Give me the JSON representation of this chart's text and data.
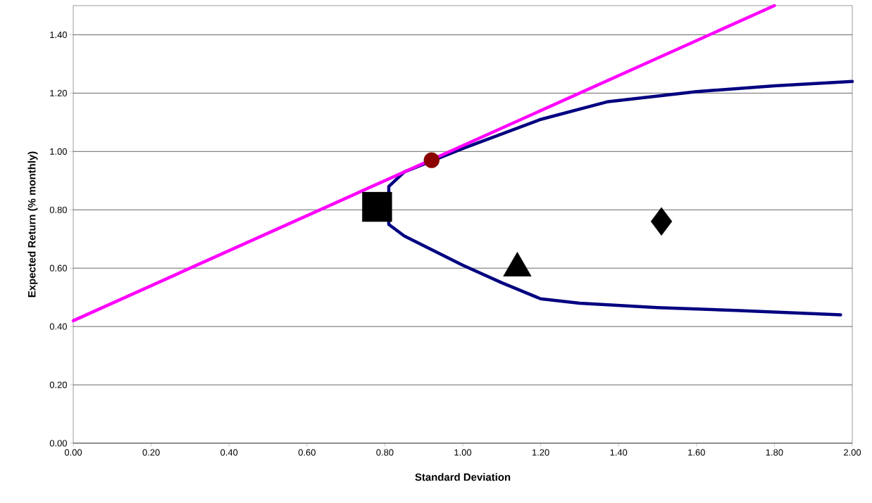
{
  "chart_data": {
    "type": "scatter",
    "xlabel": "Standard Deviation",
    "ylabel": "Expected Return (% monthly)",
    "xlim": [
      0,
      2
    ],
    "ylim": [
      0,
      1.5
    ],
    "xticks": [
      {
        "value": 0,
        "label": "0.00"
      },
      {
        "value": 0.2,
        "label": "0.20"
      },
      {
        "value": 0.4,
        "label": "0.40"
      },
      {
        "value": 0.6,
        "label": "0.60"
      },
      {
        "value": 0.8,
        "label": "0.80"
      },
      {
        "value": 1.0,
        "label": "1.00"
      },
      {
        "value": 1.2,
        "label": "1.20"
      },
      {
        "value": 1.4,
        "label": "1.40"
      },
      {
        "value": 1.6,
        "label": "1.60"
      },
      {
        "value": 1.8,
        "label": "1.80"
      },
      {
        "value": 2.0,
        "label": "2.00"
      }
    ],
    "yticks": [
      {
        "value": 0,
        "label": "0.00"
      },
      {
        "value": 0.2,
        "label": "0.20"
      },
      {
        "value": 0.4,
        "label": "0.40"
      },
      {
        "value": 0.6,
        "label": "0.60"
      },
      {
        "value": 0.8,
        "label": "0.80"
      },
      {
        "value": 1.0,
        "label": "1.00"
      },
      {
        "value": 1.2,
        "label": "1.20"
      },
      {
        "value": 1.4,
        "label": "1.40"
      }
    ],
    "grid": "y",
    "series": [
      {
        "type": "line",
        "color": "#000080",
        "marker": "none",
        "x": [
          2.0,
          1.8,
          1.6,
          1.37,
          1.2,
          1.0,
          0.85,
          0.81,
          0.81,
          0.85,
          1.0,
          1.1,
          1.2,
          1.3,
          1.5,
          1.7,
          1.97
        ],
        "values": [
          1.24,
          1.225,
          1.205,
          1.17,
          1.11,
          1.01,
          0.93,
          0.88,
          0.75,
          0.71,
          0.61,
          0.55,
          0.495,
          0.48,
          0.465,
          0.455,
          0.44
        ]
      },
      {
        "type": "line",
        "color": "#ff00ff",
        "marker": "none",
        "x": [
          0,
          1.8
        ],
        "values": [
          0.42,
          1.5
        ]
      },
      {
        "type": "scatter",
        "color": "#000000",
        "marker": "square",
        "x": [
          0.78
        ],
        "values": [
          0.81
        ]
      },
      {
        "type": "scatter",
        "color": "#000000",
        "marker": "triangle",
        "x": [
          1.14
        ],
        "values": [
          0.6
        ]
      },
      {
        "type": "scatter",
        "color": "#000000",
        "marker": "diamond",
        "x": [
          1.51
        ],
        "values": [
          0.76
        ]
      },
      {
        "type": "scatter",
        "color": "#8b0000",
        "marker": "circle",
        "x": [
          0.92
        ],
        "values": [
          0.97
        ]
      }
    ]
  }
}
